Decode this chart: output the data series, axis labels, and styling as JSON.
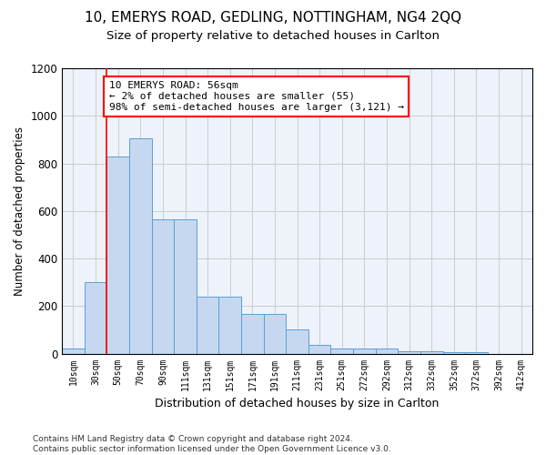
{
  "title_line1": "10, EMERYS ROAD, GEDLING, NOTTINGHAM, NG4 2QQ",
  "title_line2": "Size of property relative to detached houses in Carlton",
  "xlabel": "Distribution of detached houses by size in Carlton",
  "ylabel": "Number of detached properties",
  "footnote": "Contains HM Land Registry data © Crown copyright and database right 2024.\nContains public sector information licensed under the Open Government Licence v3.0.",
  "categories": [
    "10sqm",
    "30sqm",
    "50sqm",
    "70sqm",
    "90sqm",
    "111sqm",
    "131sqm",
    "151sqm",
    "171sqm",
    "191sqm",
    "211sqm",
    "231sqm",
    "251sqm",
    "272sqm",
    "292sqm",
    "312sqm",
    "332sqm",
    "352sqm",
    "372sqm",
    "392sqm",
    "412sqm"
  ],
  "values": [
    20,
    300,
    830,
    905,
    565,
    565,
    240,
    240,
    165,
    165,
    100,
    35,
    20,
    20,
    20,
    10,
    10,
    5,
    5,
    0,
    0
  ],
  "bar_color": "#c5d8f0",
  "bar_edge_color": "#5a9fd4",
  "annotation_text": "10 EMERYS ROAD: 56sqm\n← 2% of detached houses are smaller (55)\n98% of semi-detached houses are larger (3,121) →",
  "annotation_box_color": "white",
  "annotation_box_edge_color": "red",
  "vline_x": 1.5,
  "vline_color": "red",
  "ylim": [
    0,
    1200
  ],
  "yticks": [
    0,
    200,
    400,
    600,
    800,
    1000,
    1200
  ],
  "grid_color": "#cccccc",
  "bg_color": "#eef2fa",
  "title1_fontsize": 11,
  "title2_fontsize": 9.5,
  "footnote_fontsize": 6.5
}
